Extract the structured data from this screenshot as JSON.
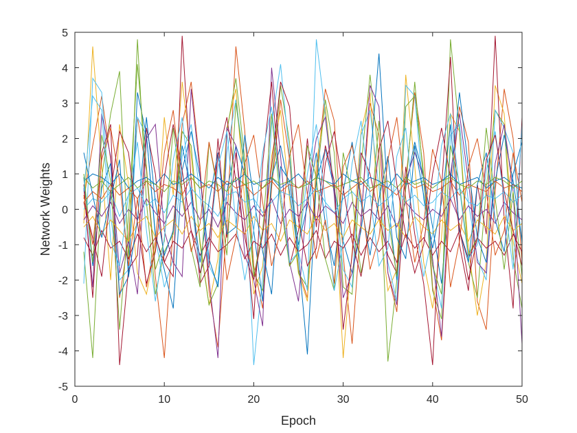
{
  "chart_data": {
    "type": "line",
    "title": "",
    "xlabel": "Epoch",
    "ylabel": "Network Weights",
    "xlim": [
      0,
      50
    ],
    "ylim": [
      -5,
      5
    ],
    "xticks": [
      0,
      10,
      20,
      30,
      40,
      50
    ],
    "yticks": [
      -5,
      -4,
      -3,
      -2,
      -1,
      0,
      1,
      2,
      3,
      4,
      5
    ],
    "grid": false,
    "legend": "none",
    "x": [
      1,
      2,
      3,
      4,
      5,
      6,
      7,
      8,
      9,
      10,
      11,
      12,
      13,
      14,
      15,
      16,
      17,
      18,
      19,
      20,
      21,
      22,
      23,
      24,
      25,
      26,
      27,
      28,
      29,
      30,
      31,
      32,
      33,
      34,
      35,
      36,
      37,
      38,
      39,
      40,
      41,
      42,
      43,
      44,
      45,
      46,
      47,
      48,
      49,
      50
    ],
    "series": [
      {
        "color": "#D95319",
        "values": [
          0.3,
          1.8,
          3.2,
          1.4,
          -2.5,
          -0.8,
          2.6,
          1.1,
          -1.9,
          -4.2,
          -0.5,
          2.4,
          3.6,
          1.2,
          -2.3,
          -3.9,
          -0.4,
          4.6,
          2.2,
          -1.6,
          -2.8,
          0.6,
          3.1,
          1.4,
          -1.7,
          -2.5,
          0.9,
          3.4,
          2.5,
          -1.3,
          -3.8,
          -0.3,
          3.0,
          2.1,
          -1.8,
          -2.9,
          0.8,
          3.3,
          1.6,
          -2.2,
          -3.7,
          0.4,
          2.9,
          1.9,
          -2.6,
          -3.4,
          0.5,
          3.4,
          2.0,
          -1.5
        ]
      },
      {
        "color": "#EDB120",
        "values": [
          -0.4,
          4.6,
          1.2,
          -2.0,
          2.4,
          0.7,
          -1.8,
          -2.4,
          -1.1,
          2.6,
          0.4,
          3.6,
          1.5,
          -0.9,
          -2.7,
          -1.4,
          2.3,
          3.4,
          0.2,
          -2.4,
          -1.6,
          1.5,
          2.8,
          0.3,
          -1.8,
          -2.6,
          1.3,
          2.9,
          0.5,
          -4.2,
          -1.2,
          2.2,
          3.3,
          -0.2,
          -2.3,
          -1.7,
          3.8,
          1.2,
          -1.5,
          -2.8,
          -0.8,
          2.7,
          2.2,
          -1.1,
          -3.0,
          -1.5,
          3.5,
          2.7,
          -0.9,
          -2.1
        ]
      },
      {
        "color": "#77AC30",
        "values": [
          -1.2,
          -4.2,
          0.9,
          2.7,
          3.9,
          -1.4,
          4.8,
          0.2,
          -2.4,
          -1.2,
          -0.7,
          2.2,
          1.8,
          -1.0,
          -2.7,
          -2.1,
          2.2,
          3.7,
          1.4,
          -1.8,
          -2.3,
          0.8,
          3.5,
          1.9,
          -1.8,
          -2.2,
          0.7,
          3.1,
          1.6,
          -2.2,
          -2.4,
          1.2,
          3.8,
          1.4,
          -4.3,
          -2.0,
          2.9,
          3.2,
          1.0,
          -2.3,
          -3.1,
          4.8,
          2.2,
          -1.5,
          -2.5,
          0.6,
          2.8,
          2.4,
          -1.4,
          -2.8
        ]
      },
      {
        "color": "#4DBEEE",
        "values": [
          -2.1,
          3.7,
          3.3,
          -0.2,
          -2.0,
          -1.7,
          2.6,
          2.1,
          -0.8,
          -2.2,
          -1.4,
          1.5,
          2.4,
          0.4,
          -1.6,
          -2.1,
          1.6,
          3.1,
          1.2,
          -4.4,
          -1.9,
          2.4,
          4.1,
          1.5,
          -1.2,
          -2.3,
          4.8,
          2.7,
          0.5,
          -1.7,
          -2.2,
          2.1,
          2.8,
          0.6,
          -1.5,
          -2.6,
          3.5,
          3.2,
          0.3,
          -1.6,
          -2.8,
          2.1,
          2.4,
          0.2,
          -1.4,
          -2.0,
          2.8,
          2.3,
          1.6,
          -1.0
        ]
      },
      {
        "color": "#0072BD",
        "values": [
          0.9,
          -1.6,
          0.6,
          1.3,
          -2.4,
          -1.9,
          3.3,
          2.1,
          -0.7,
          -1.7,
          -2.8,
          1.1,
          2.2,
          0.9,
          -1.4,
          -2.2,
          0.5,
          1.8,
          1.0,
          -0.6,
          -2.6,
          0.9,
          1.8,
          0.5,
          -1.3,
          -4.1,
          0.8,
          1.7,
          0.6,
          -0.9,
          -1.8,
          -0.6,
          1.3,
          4.4,
          0.3,
          -2.0,
          0.6,
          1.9,
          0.9,
          -0.5,
          -2.1,
          0.8,
          3.3,
          1.2,
          -0.8,
          -1.5,
          0.8,
          2.1,
          0.8,
          -0.9
        ]
      },
      {
        "color": "#7E2F8E",
        "values": [
          0.6,
          -2.2,
          2.7,
          1.5,
          -1.8,
          -0.9,
          -2.4,
          2.0,
          2.4,
          -0.6,
          -1.5,
          -1.9,
          3.4,
          1.0,
          -2.0,
          -4.2,
          2.3,
          1.8,
          -1.3,
          -2.0,
          -3.3,
          4.0,
          1.5,
          -1.5,
          -2.6,
          0.4,
          2.0,
          2.6,
          0.4,
          -2.5,
          -1.8,
          -0.4,
          3.5,
          2.9,
          -1.8,
          -2.7,
          0.8,
          1.6,
          0.9,
          -1.4,
          -3.6,
          1.0,
          2.7,
          0.8,
          -1.5,
          -1.8,
          1.3,
          2.4,
          0.5,
          -3.8
        ]
      },
      {
        "color": "#A2142F",
        "values": [
          0.7,
          -2.5,
          1.6,
          2.4,
          -4.4,
          -1.7,
          -1.3,
          2.3,
          1.0,
          -1.5,
          -1.9,
          4.9,
          0.8,
          -2.1,
          -1.6,
          2.0,
          -0.8,
          1.6,
          -0.4,
          -3.1,
          1.3,
          3.6,
          0.5,
          -1.6,
          -0.6,
          2.0,
          -0.5,
          1.8,
          0.8,
          -3.4,
          -1.3,
          1.6,
          1.0,
          -0.2,
          -1.3,
          -1.8,
          1.2,
          -0.7,
          -2.1,
          -4.4,
          0.6,
          4.3,
          -1.0,
          -2.3,
          0.7,
          -0.7,
          4.9,
          -0.3,
          -2.8,
          2.6
        ]
      },
      {
        "color": "#0072BD",
        "values": [
          0.8,
          1.0,
          0.9,
          0.7,
          1.0,
          0.6,
          0.8,
          0.9,
          0.7,
          1.0,
          0.7,
          0.8,
          1.0,
          0.8,
          0.6,
          0.9,
          0.7,
          0.8,
          1.0,
          0.7,
          0.8,
          0.9,
          0.6,
          0.8,
          1.0,
          0.7,
          0.9,
          0.8,
          0.7,
          1.0,
          0.8,
          0.7,
          0.9,
          0.8,
          0.6,
          1.0,
          0.7,
          0.8,
          0.9,
          0.7,
          0.8,
          1.0,
          0.7,
          0.8,
          0.9,
          0.6,
          0.8,
          0.9,
          0.7,
          0.6
        ]
      },
      {
        "color": "#D95319",
        "values": [
          0.2,
          0.5,
          0.3,
          0.7,
          0.4,
          0.6,
          0.3,
          0.8,
          0.5,
          0.7,
          0.6,
          0.4,
          0.9,
          0.6,
          0.7,
          0.5,
          0.8,
          0.6,
          0.7,
          0.4,
          0.6,
          0.8,
          0.5,
          0.7,
          0.6,
          0.8,
          0.5,
          0.6,
          0.7,
          0.4,
          0.6,
          0.8,
          0.5,
          0.7,
          0.6,
          0.4,
          0.8,
          0.6,
          0.7,
          0.5,
          0.6,
          0.8,
          0.4,
          0.7,
          0.6,
          0.5,
          0.8,
          0.6,
          0.7,
          0.5
        ]
      },
      {
        "color": "#77AC30",
        "values": [
          0.9,
          0.6,
          0.8,
          0.5,
          0.7,
          0.9,
          0.6,
          0.8,
          0.7,
          0.5,
          0.8,
          0.7,
          0.9,
          0.6,
          0.8,
          0.7,
          0.5,
          0.9,
          0.7,
          0.8,
          0.6,
          0.9,
          0.7,
          0.8,
          0.6,
          0.7,
          0.9,
          0.8,
          0.6,
          0.7,
          0.8,
          0.9,
          0.6,
          0.7,
          0.8,
          0.6,
          0.9,
          0.7,
          0.8,
          0.6,
          0.8,
          0.9,
          0.7,
          0.6,
          0.8,
          0.7,
          0.9,
          0.8,
          0.6,
          0.8
        ]
      },
      {
        "color": "#4DBEEE",
        "values": [
          0.0,
          0.3,
          0.2,
          0.5,
          -0.2,
          0.4,
          0.6,
          0.1,
          0.3,
          -0.1,
          0.4,
          0.2,
          0.6,
          0.3,
          0.1,
          -0.2,
          0.4,
          0.5,
          0.2,
          0.3,
          -0.1,
          0.2,
          0.5,
          0.4,
          0.1,
          0.3,
          0.6,
          0.2,
          -0.1,
          0.3,
          0.5,
          0.2,
          0.4,
          0.1,
          0.3,
          0.6,
          0.2,
          0.4,
          0.1,
          0.2,
          0.5,
          0.3,
          0.6,
          0.2,
          0.1,
          0.4,
          0.3,
          0.5,
          0.2,
          0.4
        ]
      },
      {
        "color": "#7E2F8E",
        "values": [
          -0.3,
          0.1,
          -0.2,
          0.2,
          -0.4,
          0.0,
          -0.3,
          0.3,
          -0.1,
          -0.4,
          0.1,
          -0.2,
          0.2,
          -0.3,
          0.0,
          -0.5,
          0.2,
          -0.1,
          -0.3,
          0.1,
          -0.2,
          0.3,
          -0.4,
          0.0,
          -0.2,
          0.2,
          -0.3,
          0.1,
          -0.1,
          -0.4,
          0.2,
          -0.2,
          0.0,
          -0.3,
          0.1,
          -0.5,
          0.2,
          -0.1,
          -0.3,
          0.0,
          -0.2,
          0.3,
          -0.3,
          0.1,
          -0.2,
          0.0,
          -0.4,
          0.2,
          -0.1,
          -0.3
        ]
      },
      {
        "color": "#EDB120",
        "values": [
          -0.5,
          -0.2,
          -0.7,
          -0.3,
          -0.6,
          -0.9,
          -0.4,
          -0.2,
          -0.8,
          -0.5,
          -0.3,
          -0.7,
          -0.2,
          -0.6,
          -0.4,
          -0.8,
          -0.3,
          -0.5,
          -0.7,
          -0.2,
          -0.6,
          -0.4,
          -0.9,
          -0.3,
          -0.5,
          -0.7,
          -0.2,
          -0.6,
          -0.4,
          -0.8,
          -0.3,
          -0.5,
          -0.7,
          -0.3,
          -0.6,
          -0.4,
          -0.8,
          -0.2,
          -0.5,
          -0.7,
          -0.3,
          -0.6,
          -0.4,
          -0.9,
          -0.3,
          -0.5,
          -0.7,
          -0.2,
          -0.6,
          -0.4
        ]
      },
      {
        "color": "#A2142F",
        "values": [
          -0.8,
          -1.3,
          -0.6,
          -1.1,
          -0.9,
          -1.4,
          -0.7,
          -1.2,
          -0.8,
          -1.5,
          -0.9,
          -1.1,
          -0.6,
          -1.3,
          -0.8,
          -1.2,
          -1.0,
          -0.7,
          -1.4,
          -0.9,
          -1.1,
          -0.7,
          -1.3,
          -0.8,
          -1.2,
          -1.0,
          -0.6,
          -1.4,
          -0.9,
          -1.1,
          -0.7,
          -1.3,
          -0.8,
          -1.2,
          -0.9,
          -1.5,
          -0.7,
          -1.1,
          -0.8,
          -1.3,
          -0.9,
          -1.2,
          -0.6,
          -1.4,
          -0.8,
          -1.1,
          -0.9,
          -1.3,
          -0.7,
          -1.2
        ]
      },
      {
        "color": "#0072BD",
        "values": [
          1.6,
          0.4,
          -0.8,
          0.3,
          1.4,
          -1.9,
          -0.3,
          2.6,
          0.2,
          -1.3,
          -0.6,
          1.8,
          0.5,
          -1.5,
          0.2,
          1.6,
          -0.7,
          -0.5,
          2.1,
          0.3,
          -1.2,
          -2.4,
          1.2,
          0.8,
          -1.0,
          0.1,
          1.6,
          -0.4,
          -1.6,
          0.5,
          1.9,
          0.2,
          -1.3,
          0.3,
          1.5,
          -0.8,
          -1.4,
          1.8,
          0.4,
          -1.1,
          0.2,
          2.4,
          -0.6,
          -1.5,
          0.7,
          1.6,
          -0.3,
          -1.2,
          1.0,
          1.9
        ]
      },
      {
        "color": "#77AC30",
        "values": [
          1.0,
          -1.5,
          2.1,
          0.8,
          -3.4,
          -0.2,
          4.1,
          1.2,
          -1.7,
          -0.9,
          2.3,
          0.3,
          -1.1,
          -2.2,
          1.9,
          0.5,
          -1.3,
          3.0,
          1.1,
          -1.9,
          -0.6,
          2.7,
          0.2,
          -1.6,
          -1.2,
          1.8,
          0.9,
          -1.4,
          -2.3,
          1.6,
          0.4,
          -1.8,
          -0.5,
          2.5,
          -0.2,
          -1.9,
          0.6,
          3.6,
          0.8,
          -1.6,
          -2.4,
          1.8,
          0.7,
          -1.3,
          -0.8,
          2.3,
          0.3,
          -1.7,
          0.5,
          -1.9
        ]
      },
      {
        "color": "#D95319",
        "values": [
          0.4,
          -1.0,
          1.4,
          2.3,
          0.8,
          -1.6,
          0.3,
          -2.2,
          -0.9,
          1.6,
          2.8,
          0.5,
          -1.2,
          -0.4,
          1.9,
          0.6,
          -2.0,
          -0.8,
          1.3,
          2.1,
          0.2,
          -1.6,
          -0.6,
          1.5,
          2.4,
          0.4,
          -1.4,
          -0.3,
          -2.1,
          1.2,
          1.8,
          0.4,
          -1.7,
          -0.8,
          1.4,
          2.6,
          0.3,
          -1.5,
          -0.4,
          1.7,
          0.8,
          -2.2,
          -0.9,
          1.2,
          2.0,
          0.5,
          -1.3,
          -0.6,
          1.6,
          0.2
        ]
      },
      {
        "color": "#4DBEEE",
        "values": [
          0.5,
          3.2,
          2.8,
          -0.9,
          -1.6,
          0.4,
          1.9,
          -0.6,
          -2.6,
          -0.8,
          1.4,
          2.6,
          0.3,
          -1.8,
          -1.0,
          1.2,
          2.2,
          -0.4,
          -2.0,
          -0.6,
          1.6,
          2.9,
          0.5,
          -1.5,
          -1.2,
          1.0,
          2.4,
          0.2,
          -2.3,
          -0.9,
          1.3,
          2.5,
          0.4,
          -1.6,
          -1.1,
          1.5,
          2.3,
          -0.2,
          -1.9,
          -0.7,
          1.8,
          2.7,
          0.6,
          -1.4,
          -1.0,
          1.1,
          2.2,
          0.3,
          -1.7,
          2.4
        ]
      },
      {
        "color": "#A2142F",
        "values": [
          0.2,
          -0.8,
          -1.9,
          0.5,
          2.2,
          1.6,
          -0.4,
          -2.1,
          -1.2,
          0.9,
          2.4,
          1.1,
          -0.6,
          -1.8,
          -0.9,
          1.5,
          2.6,
          0.8,
          -0.8,
          -2.0,
          -0.7,
          1.2,
          3.6,
          2.9,
          -0.3,
          -1.6,
          -1.1,
          1.3,
          2.2,
          0.6,
          -0.9,
          -1.9,
          -0.4,
          1.7,
          2.5,
          0.7,
          -0.7,
          -1.8,
          -1.0,
          1.0,
          2.3,
          0.9,
          -0.5,
          -2.0,
          -0.8,
          1.4,
          2.1,
          0.5,
          -0.6,
          -1.6
        ]
      }
    ]
  }
}
